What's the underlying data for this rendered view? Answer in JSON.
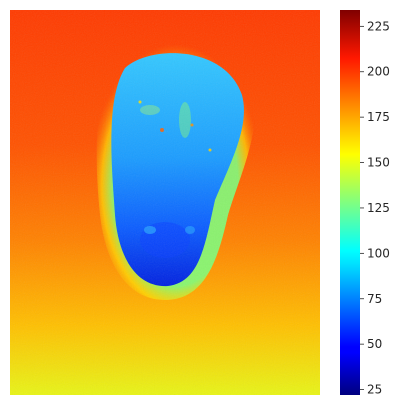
{
  "chart_data": {
    "type": "heatmap",
    "title": "",
    "xlabel": "",
    "ylabel": "",
    "axes_visible": false,
    "colormap": "jet",
    "colorbar": {
      "placement": "right",
      "vmin": 22,
      "vmax": 234,
      "ticks": [
        25,
        50,
        75,
        100,
        125,
        150,
        175,
        200,
        225
      ],
      "tick_labels": [
        "25",
        "50",
        "75",
        "100",
        "125",
        "150",
        "175",
        "200",
        "225"
      ]
    },
    "image_description_values": {
      "background_top": 210,
      "background_bottom": 155,
      "object_interior": 100,
      "object_bottom": 45,
      "halo_edge": 130
    }
  }
}
